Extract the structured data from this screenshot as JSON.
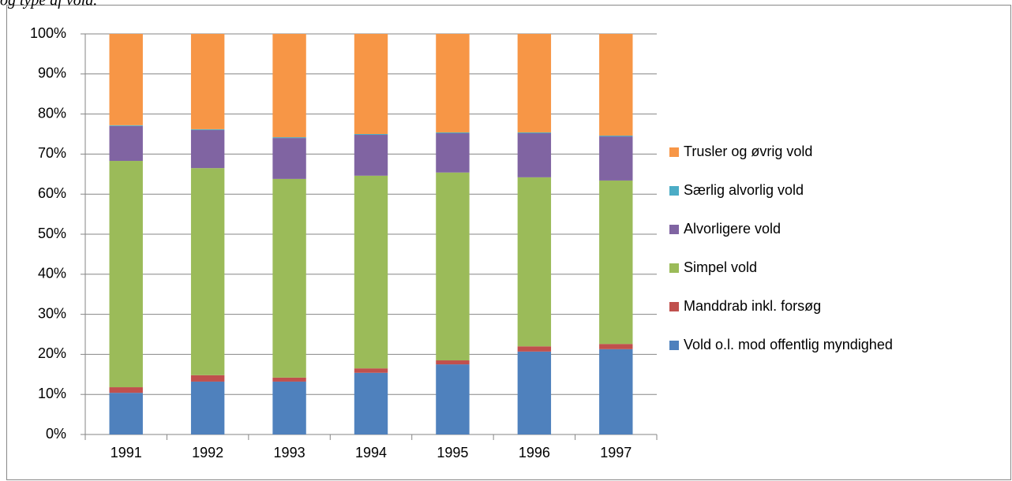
{
  "chart_data": {
    "type": "stacked_bar",
    "title": "og type af vold.",
    "categories": [
      "1991",
      "1992",
      "1993",
      "1994",
      "1995",
      "1996",
      "1997"
    ],
    "series": [
      {
        "name": "Vold o.l. mod offentlig myndighed",
        "color": "#4f81bd",
        "values": [
          10.4,
          13.2,
          13.2,
          15.4,
          17.5,
          20.7,
          21.3
        ]
      },
      {
        "name": "Manddrab inkl. forsøg",
        "color": "#c0504d",
        "values": [
          1.4,
          1.6,
          1.0,
          1.1,
          1.0,
          1.3,
          1.3
        ]
      },
      {
        "name": "Simpel vold",
        "color": "#9bbb59",
        "values": [
          56.5,
          51.7,
          49.6,
          48.1,
          46.9,
          42.2,
          40.8
        ]
      },
      {
        "name": "Alvorligere vold",
        "color": "#8064a2",
        "values": [
          8.7,
          9.5,
          10.2,
          10.2,
          9.8,
          11.0,
          11.0
        ]
      },
      {
        "name": "Særlig alvorlig vold",
        "color": "#4bacc6",
        "values": [
          0.2,
          0.2,
          0.2,
          0.2,
          0.2,
          0.2,
          0.2
        ]
      },
      {
        "name": "Trusler og øvrig vold",
        "color": "#f79646",
        "values": [
          22.8,
          23.8,
          25.8,
          25.0,
          24.6,
          24.6,
          25.4
        ]
      }
    ],
    "ylim": [
      0,
      100
    ],
    "yticks": [
      {
        "value": 0,
        "label": "0%"
      },
      {
        "value": 10,
        "label": "10%"
      },
      {
        "value": 20,
        "label": "20%"
      },
      {
        "value": 30,
        "label": "30%"
      },
      {
        "value": 40,
        "label": "40%"
      },
      {
        "value": 50,
        "label": "50%"
      },
      {
        "value": 60,
        "label": "60%"
      },
      {
        "value": 70,
        "label": "70%"
      },
      {
        "value": 80,
        "label": "80%"
      },
      {
        "value": 90,
        "label": "90%"
      },
      {
        "value": 100,
        "label": "100%"
      }
    ],
    "grid": true,
    "legend": "right"
  }
}
